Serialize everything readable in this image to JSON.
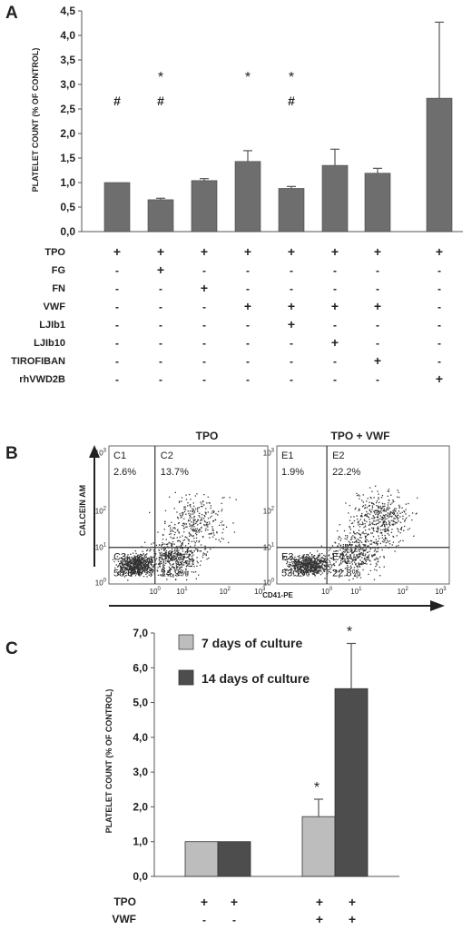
{
  "panel_labels": {
    "a": "A",
    "b": "B",
    "c": "C"
  },
  "colors": {
    "bar": "#6e6e6e",
    "bar7": "#bdbdbd",
    "bar14": "#4d4d4d",
    "dot": "#333333"
  },
  "chart_data": [
    {
      "type": "bar",
      "panel": "A",
      "ylabel": "PLATELET COUNT (% OF CONTROL)",
      "ylim": [
        0,
        4.5
      ],
      "yticks": [
        "0,0",
        "0,5",
        "1,0",
        "1,5",
        "2,0",
        "2,5",
        "3,0",
        "3,5",
        "4,0",
        "4,5"
      ],
      "values": [
        1.0,
        0.65,
        1.04,
        1.43,
        0.88,
        1.35,
        1.19,
        2.72
      ],
      "errors": [
        0.0,
        0.03,
        0.04,
        0.22,
        0.04,
        0.33,
        0.1,
        1.55
      ],
      "stars": [
        "",
        "*",
        "",
        "*",
        "*",
        "",
        "",
        ""
      ],
      "hashes": [
        "#",
        "#",
        "",
        "",
        "#",
        "",
        "",
        ""
      ],
      "grid": false,
      "treatments": [
        {
          "name": "TPO",
          "signs": [
            "+",
            "+",
            "+",
            "+",
            "+",
            "+",
            "+",
            "+"
          ]
        },
        {
          "name": "FG",
          "signs": [
            "-",
            "+",
            "-",
            "-",
            "-",
            "-",
            "-",
            "-"
          ]
        },
        {
          "name": "FN",
          "signs": [
            "-",
            "-",
            "+",
            "-",
            "-",
            "-",
            "-",
            "-"
          ]
        },
        {
          "name": "VWF",
          "signs": [
            "-",
            "-",
            "-",
            "+",
            "+",
            "+",
            "+",
            "-"
          ]
        },
        {
          "name": "LJIb1",
          "signs": [
            "-",
            "-",
            "-",
            "-",
            "+",
            "-",
            "-",
            "-"
          ]
        },
        {
          "name": "LJIb10",
          "signs": [
            "-",
            "-",
            "-",
            "-",
            "-",
            "+",
            "-",
            "-"
          ]
        },
        {
          "name": "TIROFIBAN",
          "signs": [
            "-",
            "-",
            "-",
            "-",
            "-",
            "-",
            "+",
            "-"
          ]
        },
        {
          "name": "rhVWD2B",
          "signs": [
            "-",
            "-",
            "-",
            "-",
            "-",
            "-",
            "-",
            "+"
          ]
        }
      ]
    },
    {
      "type": "scatter",
      "panel": "B",
      "xlabel": "CD41-PE",
      "ylabel": "CALCEIN AM",
      "axis_ticks": [
        "10^0",
        "10^1",
        "10^2",
        "10^3"
      ],
      "plots": [
        {
          "title": "TPO",
          "quadrants": [
            {
              "name": "C1",
              "pct": "2.6%"
            },
            {
              "name": "C2",
              "pct": "13.7%"
            },
            {
              "name": "C3",
              "pct": "58.6%"
            },
            {
              "name": "C4",
              "pct": "24.9%"
            }
          ]
        },
        {
          "title": "TPO + VWF",
          "quadrants": [
            {
              "name": "E1",
              "pct": "1.9%"
            },
            {
              "name": "E2",
              "pct": "22.2%"
            },
            {
              "name": "E3",
              "pct": "53.1%"
            },
            {
              "name": "E4",
              "pct": "22.8%"
            }
          ]
        }
      ]
    },
    {
      "type": "bar",
      "panel": "C",
      "ylabel": "PLATELET COUNT (% OF CONTROL)",
      "ylim": [
        0,
        7
      ],
      "yticks": [
        "0,0",
        "1,0",
        "2,0",
        "3,0",
        "4,0",
        "5,0",
        "6,0",
        "7,0"
      ],
      "series": [
        {
          "name": "7 days of culture",
          "values": [
            1.0,
            1.72
          ],
          "errors": [
            0,
            0.5
          ],
          "stars": [
            "",
            "*"
          ]
        },
        {
          "name": "14 days of culture",
          "values": [
            1.0,
            5.4
          ],
          "errors": [
            0,
            1.3
          ],
          "stars": [
            "",
            "*"
          ]
        }
      ],
      "treatments": [
        {
          "name": "TPO",
          "signs": [
            "+",
            "+",
            "+",
            "+"
          ]
        },
        {
          "name": "VWF",
          "signs": [
            "-",
            "-",
            "+",
            "+"
          ]
        }
      ]
    }
  ]
}
